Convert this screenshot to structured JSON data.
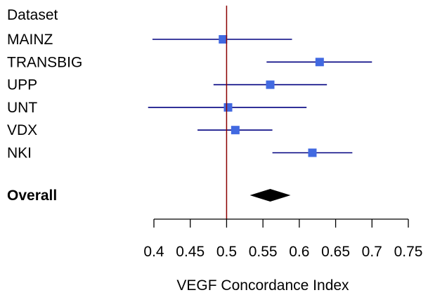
{
  "chart_data": {
    "type": "forest",
    "header": "Dataset",
    "xlabel": "VEGF Concordance Index",
    "xlim": [
      0.4,
      0.75
    ],
    "xticks": [
      0.4,
      0.45,
      0.5,
      0.55,
      0.6,
      0.65,
      0.7,
      0.75
    ],
    "xtick_labels": [
      "0.4",
      "0.45",
      "0.5",
      "0.55",
      "0.6",
      "0.65",
      "0.7",
      "0.75"
    ],
    "reference_line": 0.5,
    "grid": false,
    "studies": [
      {
        "label": "MAINZ",
        "estimate": 0.495,
        "lower": 0.398,
        "upper": 0.59
      },
      {
        "label": "TRANSBIG",
        "estimate": 0.628,
        "lower": 0.555,
        "upper": 0.7
      },
      {
        "label": "UPP",
        "estimate": 0.56,
        "lower": 0.482,
        "upper": 0.638
      },
      {
        "label": "UNT",
        "estimate": 0.502,
        "lower": 0.392,
        "upper": 0.61
      },
      {
        "label": "VDX",
        "estimate": 0.512,
        "lower": 0.46,
        "upper": 0.563
      },
      {
        "label": "NKI",
        "estimate": 0.618,
        "lower": 0.563,
        "upper": 0.673
      }
    ],
    "overall": {
      "label": "Overall",
      "estimate": 0.56,
      "lower": 0.532,
      "upper": 0.588
    }
  },
  "colors": {
    "ci_line": "#000080",
    "point": "#4169E1",
    "reference_line": "#8B0000",
    "diamond": "#000000",
    "axis": "#000000"
  }
}
